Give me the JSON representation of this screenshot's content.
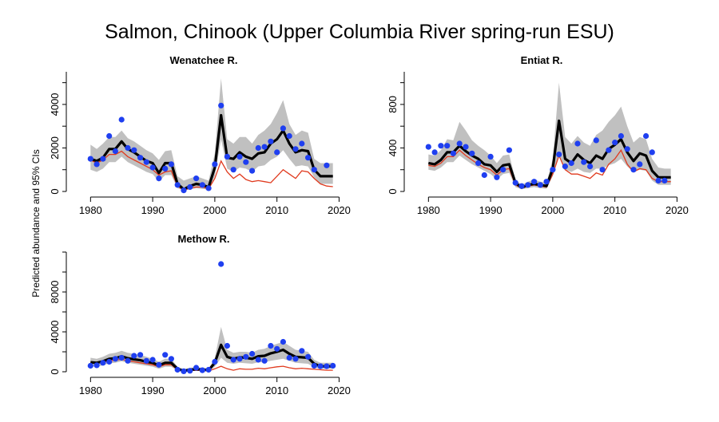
{
  "title": "Salmon, Chinook (Upper Columbia River spring-run ESU)",
  "ylabel": "Predicted abundance and 95% CIs",
  "colors": {
    "ci": "#c0c0c0",
    "estimate": "#000000",
    "obs": "#1f3ff0",
    "red": "#e03a1e"
  },
  "chart_data": [
    {
      "type": "line",
      "title": "Wenatchee R.",
      "xlim": [
        1977,
        2022
      ],
      "ylim": [
        0,
        5500
      ],
      "xticks": [
        "1980",
        "1990",
        "2000",
        "2010",
        "2020"
      ],
      "yticks": [
        "0",
        "2000",
        "4000"
      ],
      "x": [
        1980,
        1981,
        1982,
        1983,
        1984,
        1985,
        1986,
        1987,
        1988,
        1989,
        1990,
        1991,
        1992,
        1993,
        1994,
        1995,
        1996,
        1997,
        1998,
        1999,
        2000,
        2001,
        2002,
        2003,
        2004,
        2005,
        2006,
        2007,
        2008,
        2009,
        2010,
        2011,
        2012,
        2013,
        2014,
        2015,
        2016,
        2017,
        2018,
        2019
      ],
      "series": [
        {
          "role": "ci_upper",
          "values": [
            2150,
            1950,
            2200,
            2500,
            2500,
            2800,
            2450,
            2300,
            2100,
            1900,
            1750,
            1450,
            1850,
            1900,
            700,
            500,
            600,
            700,
            600,
            500,
            1750,
            5200,
            2400,
            2200,
            2500,
            2500,
            2200,
            2600,
            2800,
            3100,
            3600,
            4200,
            3100,
            2600,
            2800,
            2700,
            1500,
            1300,
            1300,
            1300
          ]
        },
        {
          "role": "ci_lower",
          "values": [
            1000,
            900,
            1050,
            1350,
            1350,
            1600,
            1350,
            1200,
            1050,
            900,
            800,
            450,
            750,
            750,
            150,
            40,
            100,
            150,
            120,
            80,
            700,
            2400,
            1050,
            900,
            1100,
            1050,
            900,
            1150,
            1200,
            1450,
            1600,
            1900,
            1500,
            1150,
            1200,
            1150,
            650,
            350,
            350,
            350
          ]
        },
        {
          "role": "estimate",
          "values": [
            1500,
            1400,
            1550,
            1950,
            1950,
            2300,
            1950,
            1800,
            1600,
            1400,
            1300,
            850,
            1300,
            1300,
            350,
            100,
            250,
            350,
            300,
            200,
            1100,
            3500,
            1550,
            1500,
            1800,
            1600,
            1500,
            1750,
            1800,
            2200,
            2400,
            2800,
            2200,
            1800,
            1900,
            1850,
            1000,
            700,
            700,
            700
          ]
        },
        {
          "role": "red",
          "values": [
            1450,
            1300,
            1450,
            1700,
            1700,
            1850,
            1600,
            1450,
            1300,
            1150,
            1000,
            750,
            900,
            950,
            250,
            60,
            150,
            200,
            200,
            120,
            600,
            1400,
            900,
            600,
            800,
            550,
            450,
            500,
            450,
            400,
            700,
            1000,
            800,
            600,
            950,
            900,
            600,
            350,
            250,
            220
          ]
        },
        {
          "role": "observed",
          "values": [
            1500,
            1250,
            1500,
            2550,
            1850,
            3300,
            2000,
            1900,
            1550,
            1350,
            1100,
            600,
            1050,
            1250,
            300,
            50,
            200,
            600,
            300,
            150,
            1250,
            3950,
            1600,
            1000,
            1600,
            1350,
            950,
            2000,
            2050,
            2300,
            1800,
            2900,
            2550,
            1950,
            2200,
            1550,
            1000,
            null,
            1200,
            null
          ]
        }
      ]
    },
    {
      "type": "line",
      "title": "Entiat R.",
      "xlim": [
        1977,
        2022
      ],
      "ylim": [
        0,
        1100
      ],
      "xticks": [
        "1980",
        "1990",
        "2000",
        "2010",
        "2020"
      ],
      "yticks": [
        "0",
        "400",
        "800"
      ],
      "x": [
        1980,
        1981,
        1982,
        1983,
        1984,
        1985,
        1986,
        1987,
        1988,
        1989,
        1990,
        1991,
        1992,
        1993,
        1994,
        1995,
        1996,
        1997,
        1998,
        1999,
        2000,
        2001,
        2002,
        2003,
        2004,
        2005,
        2006,
        2007,
        2008,
        2009,
        2010,
        2011,
        2012,
        2013,
        2014,
        2015,
        2016,
        2017,
        2018,
        2019
      ],
      "series": [
        {
          "role": "ci_upper",
          "values": [
            340,
            330,
            380,
            480,
            470,
            640,
            560,
            470,
            420,
            380,
            330,
            260,
            330,
            340,
            110,
            60,
            90,
            110,
            90,
            80,
            300,
            1000,
            500,
            440,
            510,
            450,
            420,
            520,
            560,
            640,
            700,
            780,
            600,
            450,
            500,
            480,
            300,
            220,
            210,
            210
          ]
        },
        {
          "role": "ci_lower",
          "values": [
            200,
            190,
            220,
            270,
            270,
            330,
            290,
            250,
            220,
            190,
            160,
            110,
            160,
            170,
            40,
            20,
            30,
            40,
            30,
            25,
            140,
            320,
            200,
            180,
            210,
            180,
            170,
            210,
            210,
            240,
            260,
            300,
            230,
            180,
            200,
            190,
            100,
            60,
            60,
            60
          ]
        },
        {
          "role": "estimate",
          "values": [
            260,
            250,
            290,
            360,
            360,
            420,
            370,
            330,
            300,
            250,
            240,
            180,
            240,
            250,
            80,
            35,
            60,
            70,
            60,
            50,
            210,
            650,
            300,
            260,
            340,
            290,
            260,
            330,
            300,
            390,
            430,
            480,
            360,
            280,
            350,
            330,
            190,
            130,
            130,
            130
          ]
        },
        {
          "role": "red",
          "values": [
            240,
            230,
            260,
            320,
            320,
            380,
            330,
            290,
            250,
            220,
            200,
            150,
            200,
            210,
            60,
            30,
            50,
            60,
            50,
            40,
            160,
            330,
            200,
            160,
            160,
            140,
            120,
            170,
            150,
            250,
            300,
            380,
            250,
            180,
            210,
            200,
            120,
            90,
            90,
            90
          ]
        },
        {
          "role": "observed",
          "values": [
            410,
            360,
            420,
            420,
            350,
            440,
            410,
            350,
            260,
            150,
            320,
            130,
            200,
            380,
            80,
            50,
            60,
            90,
            60,
            90,
            200,
            340,
            230,
            260,
            440,
            270,
            230,
            470,
            200,
            380,
            450,
            510,
            390,
            200,
            250,
            510,
            360,
            100,
            100,
            null
          ]
        }
      ]
    },
    {
      "type": "line",
      "title": "Methow R.",
      "xlim": [
        1977,
        2022
      ],
      "ylim": [
        0,
        12000
      ],
      "xticks": [
        "1980",
        "1990",
        "2000",
        "2010",
        "2020"
      ],
      "yticks": [
        "0",
        "4000",
        "8000"
      ],
      "x": [
        1980,
        1981,
        1982,
        1983,
        1984,
        1985,
        1986,
        1987,
        1988,
        1989,
        1990,
        1991,
        1992,
        1993,
        1994,
        1995,
        1996,
        1997,
        1998,
        1999,
        2000,
        2001,
        2002,
        2003,
        2004,
        2005,
        2006,
        2007,
        2008,
        2009,
        2010,
        2011,
        2012,
        2013,
        2014,
        2015,
        2016,
        2017,
        2018,
        2019
      ],
      "series": [
        {
          "role": "ci_upper",
          "values": [
            1400,
            1300,
            1500,
            1800,
            1900,
            2100,
            1900,
            1800,
            1700,
            1500,
            1300,
            1000,
            1300,
            1300,
            500,
            250,
            400,
            450,
            400,
            300,
            1400,
            4500,
            2200,
            1900,
            2000,
            2000,
            1900,
            2200,
            2300,
            2600,
            2800,
            3000,
            2600,
            2200,
            2100,
            2000,
            1200,
            900,
            900,
            900
          ]
        },
        {
          "role": "ci_lower",
          "values": [
            550,
            500,
            650,
            850,
            900,
            1050,
            900,
            800,
            700,
            600,
            500,
            300,
            500,
            500,
            100,
            30,
            80,
            120,
            100,
            60,
            500,
            1400,
            900,
            800,
            900,
            850,
            800,
            950,
            950,
            1100,
            1200,
            1300,
            1100,
            900,
            850,
            800,
            450,
            300,
            300,
            300
          ]
        },
        {
          "role": "estimate",
          "values": [
            950,
            900,
            1050,
            1300,
            1350,
            1550,
            1350,
            1250,
            1150,
            1000,
            900,
            650,
            900,
            900,
            300,
            80,
            200,
            250,
            230,
            150,
            900,
            2700,
            1500,
            1300,
            1450,
            1400,
            1300,
            1550,
            1600,
            1850,
            2000,
            2200,
            1800,
            1500,
            1450,
            1400,
            800,
            550,
            550,
            550
          ]
        },
        {
          "role": "red",
          "values": [
            900,
            850,
            950,
            1100,
            1150,
            1250,
            1100,
            1000,
            900,
            800,
            700,
            500,
            700,
            700,
            200,
            50,
            120,
            150,
            130,
            80,
            300,
            550,
            300,
            150,
            300,
            250,
            250,
            350,
            300,
            400,
            500,
            550,
            400,
            300,
            350,
            300,
            250,
            200,
            150,
            150
          ]
        },
        {
          "role": "observed",
          "values": [
            600,
            650,
            900,
            1000,
            1300,
            1400,
            1100,
            1600,
            1700,
            1100,
            1200,
            700,
            1700,
            1300,
            200,
            50,
            100,
            400,
            150,
            200,
            1000,
            10800,
            2600,
            1200,
            1300,
            1500,
            1800,
            1200,
            1100,
            2600,
            2300,
            3000,
            1400,
            1300,
            2100,
            1500,
            600,
            550,
            550,
            600
          ]
        }
      ]
    }
  ]
}
